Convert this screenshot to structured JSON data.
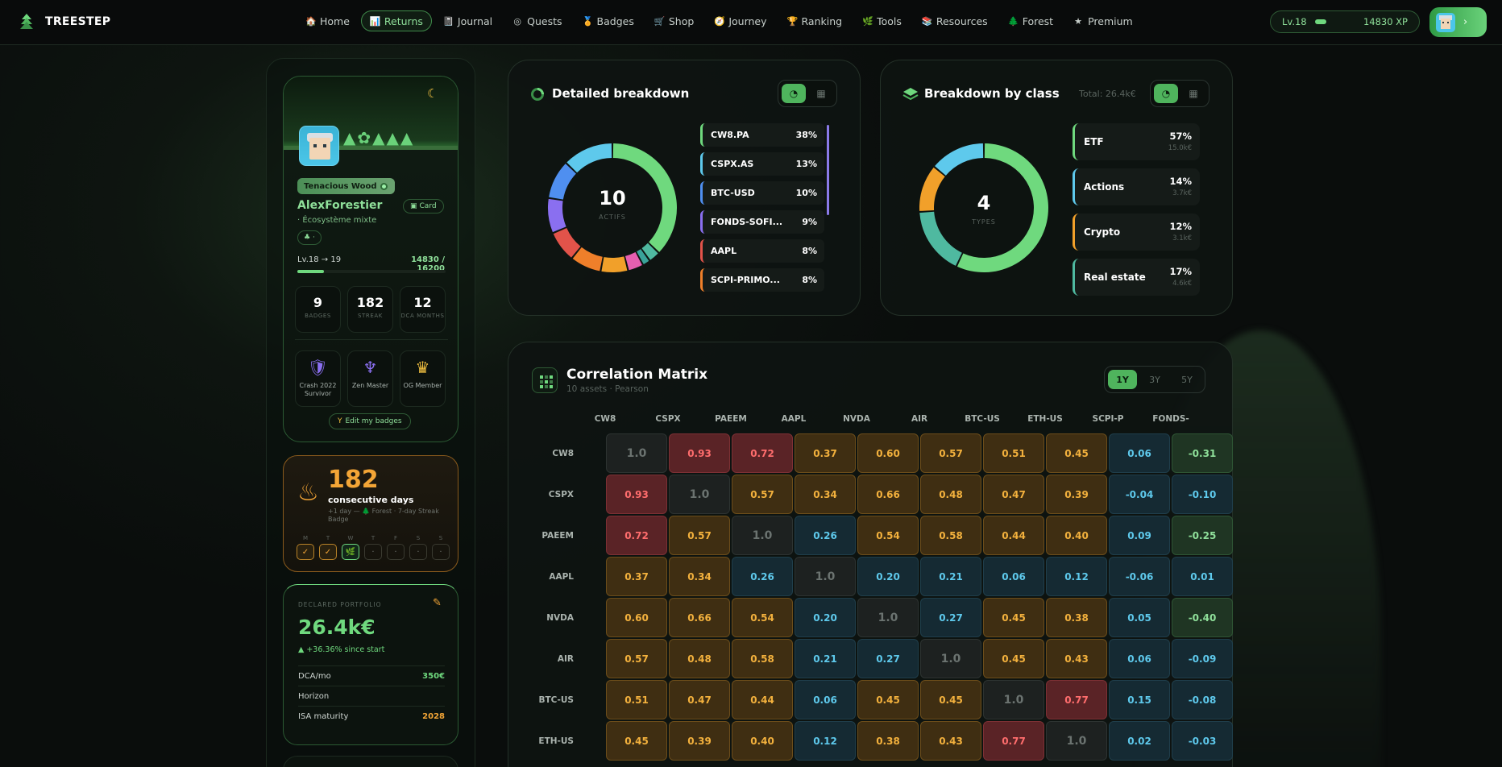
{
  "brand": {
    "name": "TREESTEP"
  },
  "nav": {
    "items": [
      {
        "label": "Home",
        "icon": "🏠",
        "active": false
      },
      {
        "label": "Returns",
        "icon": "📊",
        "active": true
      },
      {
        "label": "Journal",
        "icon": "📓",
        "active": false
      },
      {
        "label": "Quests",
        "icon": "◎",
        "active": false
      },
      {
        "label": "Badges",
        "icon": "🏅",
        "active": false
      },
      {
        "label": "Shop",
        "icon": "🛒",
        "active": false
      },
      {
        "label": "Journey",
        "icon": "🧭",
        "active": false
      },
      {
        "label": "Ranking",
        "icon": "🏆",
        "active": false
      },
      {
        "label": "Tools",
        "icon": "🌿",
        "active": false
      },
      {
        "label": "Resources",
        "icon": "📚",
        "active": false
      },
      {
        "label": "Forest",
        "icon": "🌲",
        "active": false
      },
      {
        "label": "Premium",
        "icon": "★",
        "active": false
      }
    ],
    "level": "Lv.18",
    "xp": "14830 XP"
  },
  "profile": {
    "rank": "Tenacious Wood",
    "username": "AlexForestier",
    "card_label": "Card",
    "ecosystem": "· Écosystème mixte",
    "chip": "♣ ·",
    "level_line": "Lv.18 → 19",
    "xp_line": "14830 / 16200",
    "xp_progress": 0.18,
    "stats": [
      {
        "value": "9",
        "label": "BADGES"
      },
      {
        "value": "182",
        "label": "STREAK"
      },
      {
        "value": "12",
        "label": "DCA MONTHS"
      }
    ],
    "badges": [
      {
        "icon": "shield-icon",
        "label": "Crash 2022 Survivor"
      },
      {
        "icon": "meditation-icon",
        "label": "Zen Master"
      },
      {
        "icon": "crown-icon",
        "label": "OG Member"
      }
    ],
    "edit_badges": "Edit my badges"
  },
  "streak": {
    "value": "182",
    "label": "consecutive days",
    "sub": "+1 day — 🌲 Forest · 7-day Streak Badge",
    "days": [
      {
        "l": "M",
        "s": "done",
        "mark": "✓"
      },
      {
        "l": "T",
        "s": "done",
        "mark": "✓"
      },
      {
        "l": "W",
        "s": "today",
        "mark": "🌿"
      },
      {
        "l": "T",
        "s": "empty",
        "mark": "·"
      },
      {
        "l": "F",
        "s": "empty",
        "mark": "·"
      },
      {
        "l": "S",
        "s": "empty",
        "mark": "·"
      },
      {
        "l": "S",
        "s": "empty",
        "mark": "·"
      }
    ]
  },
  "portfolio": {
    "title": "DECLARED PORTFOLIO",
    "value": "26.4k€",
    "gain": "▲ +36.36% since start",
    "rows": [
      {
        "label": "DCA/mo",
        "value": "350€",
        "tone": "green"
      },
      {
        "label": "Horizon",
        "value": "",
        "tone": ""
      },
      {
        "label": "ISA maturity",
        "value": "2028",
        "tone": "orange"
      }
    ]
  },
  "detailed": {
    "title": "Detailed breakdown",
    "center_value": "10",
    "center_label": "ACTIFS",
    "items": [
      {
        "name": "CW8.PA",
        "pct": "38%",
        "color": "#6fd97e"
      },
      {
        "name": "CSPX.AS",
        "pct": "13%",
        "color": "#5ec9ec"
      },
      {
        "name": "BTC-USD",
        "pct": "10%",
        "color": "#4f8ff0"
      },
      {
        "name": "FONDS-SOFI...",
        "pct": "9%",
        "color": "#8a6ff0"
      },
      {
        "name": "AAPL",
        "pct": "8%",
        "color": "#e2534a"
      },
      {
        "name": "SCPI-PRIMO...",
        "pct": "8%",
        "color": "#ef7f2a"
      }
    ],
    "slices": [
      {
        "value": 38,
        "color": "#6fd97e"
      },
      {
        "value": 3,
        "color": "#4fb9a0"
      },
      {
        "value": 2,
        "color": "#3aa39a"
      },
      {
        "value": 4,
        "color": "#e65fb0"
      },
      {
        "value": 7,
        "color": "#f1a02a"
      },
      {
        "value": 8,
        "color": "#ef7f2a"
      },
      {
        "value": 8,
        "color": "#e2534a"
      },
      {
        "value": 9,
        "color": "#8a6ff0"
      },
      {
        "value": 10,
        "color": "#4f8ff0"
      },
      {
        "value": 13,
        "color": "#5ec9ec"
      }
    ]
  },
  "by_class": {
    "title": "Breakdown by class",
    "total": "Total: 26.4k€",
    "center_value": "4",
    "center_label": "TYPES",
    "items": [
      {
        "name": "ETF",
        "pct": "57%",
        "amount": "15.0k€",
        "color": "#6fd97e"
      },
      {
        "name": "Actions",
        "pct": "14%",
        "amount": "3.7k€",
        "color": "#5ec9ec"
      },
      {
        "name": "Crypto",
        "pct": "12%",
        "amount": "3.1k€",
        "color": "#f1a02a"
      },
      {
        "name": "Real estate",
        "pct": "17%",
        "amount": "4.6k€",
        "color": "#4fb9a0"
      }
    ],
    "slices": [
      {
        "value": 57,
        "color": "#6fd97e"
      },
      {
        "value": 17,
        "color": "#4fb9a0"
      },
      {
        "value": 12,
        "color": "#f1a02a"
      },
      {
        "value": 14,
        "color": "#5ec9ec"
      }
    ]
  },
  "correlation": {
    "title": "Correlation Matrix",
    "subtitle": "10 assets · Pearson",
    "periods": [
      {
        "label": "1Y",
        "on": true
      },
      {
        "label": "3Y",
        "on": false
      },
      {
        "label": "5Y",
        "on": false
      }
    ],
    "columns": [
      "CW8",
      "CSPX",
      "PAEEM",
      "AAPL",
      "NVDA",
      "AIR",
      "BTC-US",
      "ETH-US",
      "SCPI-P",
      "FONDS-"
    ],
    "rows": [
      {
        "label": "CW8",
        "values": [
          "1.0",
          "0.93",
          "0.72",
          "0.37",
          "0.60",
          "0.57",
          "0.51",
          "0.45",
          "0.06",
          "-0.31"
        ]
      },
      {
        "label": "CSPX",
        "values": [
          "0.93",
          "1.0",
          "0.57",
          "0.34",
          "0.66",
          "0.48",
          "0.47",
          "0.39",
          "-0.04",
          "-0.10"
        ]
      },
      {
        "label": "PAEEM",
        "values": [
          "0.72",
          "0.57",
          "1.0",
          "0.26",
          "0.54",
          "0.58",
          "0.44",
          "0.40",
          "0.09",
          "-0.25"
        ]
      },
      {
        "label": "AAPL",
        "values": [
          "0.37",
          "0.34",
          "0.26",
          "1.0",
          "0.20",
          "0.21",
          "0.06",
          "0.12",
          "-0.06",
          "0.01"
        ]
      },
      {
        "label": "NVDA",
        "values": [
          "0.60",
          "0.66",
          "0.54",
          "0.20",
          "1.0",
          "0.27",
          "0.45",
          "0.38",
          "0.05",
          "-0.40"
        ]
      },
      {
        "label": "AIR",
        "values": [
          "0.57",
          "0.48",
          "0.58",
          "0.21",
          "0.27",
          "1.0",
          "0.45",
          "0.43",
          "0.06",
          "-0.09"
        ]
      },
      {
        "label": "BTC-US",
        "values": [
          "0.51",
          "0.47",
          "0.44",
          "0.06",
          "0.45",
          "0.45",
          "1.0",
          "0.77",
          "0.15",
          "-0.08"
        ]
      },
      {
        "label": "ETH-US",
        "values": [
          "0.45",
          "0.39",
          "0.40",
          "0.12",
          "0.38",
          "0.43",
          "0.77",
          "1.0",
          "0.02",
          "-0.03"
        ]
      }
    ]
  }
}
